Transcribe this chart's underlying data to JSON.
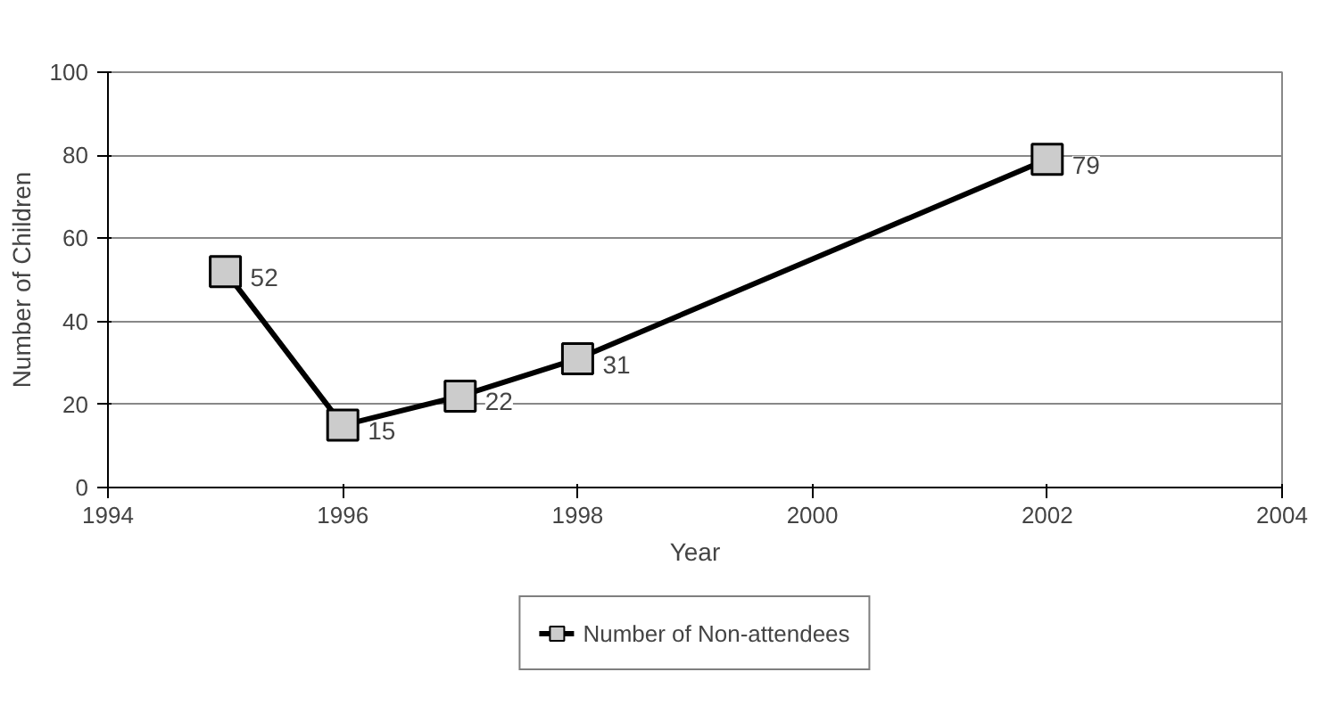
{
  "chart_data": {
    "type": "line",
    "xlabel": "Year",
    "ylabel": "Number of Children",
    "x": [
      1995,
      1996,
      1997,
      1998,
      2002
    ],
    "series": [
      {
        "name": "Number of Non-attendees",
        "color": "#000000",
        "values": [
          52,
          15,
          22,
          31,
          79
        ]
      }
    ],
    "xlim": [
      1994,
      2004
    ],
    "xticks": [
      1994,
      1996,
      1998,
      2000,
      2002,
      2004
    ],
    "ylim": [
      0,
      100
    ],
    "yticks": [
      0,
      20,
      40,
      60,
      80,
      100
    ],
    "grid": "y",
    "legend": "bottom",
    "marker": "square",
    "data_labels": true
  }
}
